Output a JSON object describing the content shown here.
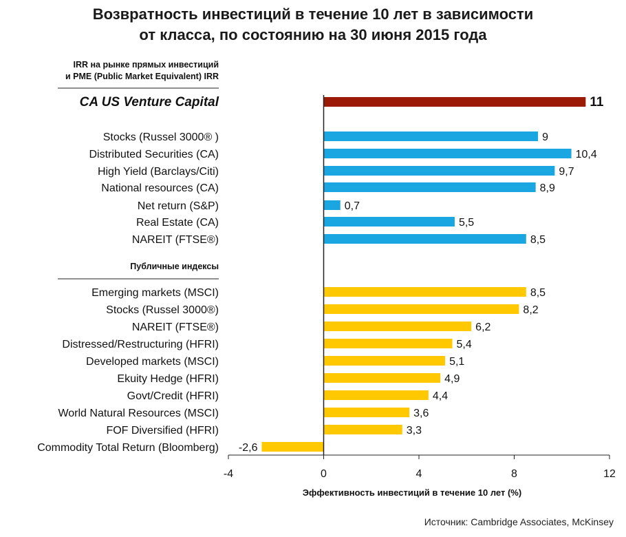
{
  "title": {
    "line1": "Возвратность инвестиций в течение 10 лет в зависимости",
    "line2": "от класса, по состоянию на 30 июня 2015 года"
  },
  "source": "Источник: Cambridge Associates, McKinsey",
  "chart_data": {
    "type": "bar",
    "orientation": "horizontal",
    "title": "Возвратность инвестиций в течение 10 лет в зависимости от класса, по состоянию на 30 июня 2015 года",
    "xlabel": "Эффективность инвестиций в течение 10 лет (%)",
    "xlim": [
      -4,
      12
    ],
    "xticks": [
      -4,
      0,
      4,
      8,
      12
    ],
    "grid": false,
    "colors": {
      "highlight": "#9b1a06",
      "private": "#1aa6e0",
      "public": "#ffc800"
    },
    "groups": [
      {
        "header": [],
        "color_key": "highlight",
        "bold": true,
        "items": [
          {
            "label": "CA US Venture Capital",
            "value": 11,
            "value_label": "11"
          }
        ]
      },
      {
        "header": [
          "IRR на рынке прямых инвестиций",
          "и PME (Public Market Equivalent) IRR"
        ],
        "color_key": "private",
        "items": [
          {
            "label": "Stocks (Russel 3000® )",
            "value": 9,
            "value_label": "9"
          },
          {
            "label": "Distributed Securities (CA)",
            "value": 10.4,
            "value_label": "10,4"
          },
          {
            "label": "High Yield (Barclays/Citi)",
            "value": 9.7,
            "value_label": "9,7"
          },
          {
            "label": "National resources (CA)",
            "value": 8.9,
            "value_label": "8,9"
          },
          {
            "label": "Net return (S&P)",
            "value": 0.7,
            "value_label": "0,7"
          },
          {
            "label": "Real Estate (CA)",
            "value": 5.5,
            "value_label": "5,5"
          },
          {
            "label": "NAREIT (FTSE®)",
            "value": 8.5,
            "value_label": "8,5"
          }
        ]
      },
      {
        "header": [
          "Публичные индексы"
        ],
        "color_key": "public",
        "items": [
          {
            "label": "Emerging markets (MSCI)",
            "value": 8.5,
            "value_label": "8,5"
          },
          {
            "label": "Stocks (Russel 3000®)",
            "value": 8.2,
            "value_label": "8,2"
          },
          {
            "label": "NAREIT (FTSE®)",
            "value": 6.2,
            "value_label": "6,2"
          },
          {
            "label": "Distressed/Restructuring (HFRI)",
            "value": 5.4,
            "value_label": "5,4"
          },
          {
            "label": "Developed markets (MSCI)",
            "value": 5.1,
            "value_label": "5,1"
          },
          {
            "label": "Ekuity Hedge (HFRI)",
            "value": 4.9,
            "value_label": "4,9"
          },
          {
            "label": "Govt/Credit (HFRI)",
            "value": 4.4,
            "value_label": "4,4"
          },
          {
            "label": "World Natural Resources (MSCI)",
            "value": 3.6,
            "value_label": "3,6"
          },
          {
            "label": "FOF Diversified (HFRI)",
            "value": 3.3,
            "value_label": "3,3"
          },
          {
            "label": "Commodity Total Return (Bloomberg)",
            "value": -2.6,
            "value_label": "-2,6"
          }
        ]
      }
    ]
  }
}
